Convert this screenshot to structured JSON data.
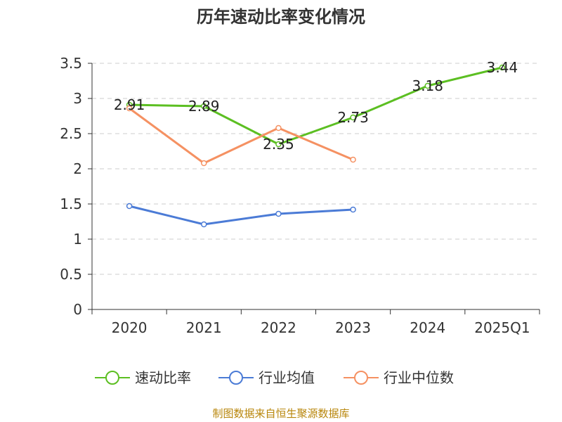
{
  "chart_data": {
    "type": "line",
    "title": "历年速动比率变化情况",
    "categories": [
      "2020",
      "2021",
      "2022",
      "2023",
      "2024",
      "2025Q1"
    ],
    "ylim": [
      0,
      3.5
    ],
    "yticks": [
      "0",
      "0.5",
      "1",
      "1.5",
      "2",
      "2.5",
      "3",
      "3.5"
    ],
    "grid": true,
    "legend_position": "bottom",
    "series": [
      {
        "name": "速动比率",
        "color": "#5cbf22",
        "values": [
          2.91,
          2.89,
          2.35,
          2.73,
          3.18,
          3.44
        ],
        "labels": [
          "2.91",
          "2.89",
          "2.35",
          "2.73",
          "3.18",
          "3.44"
        ]
      },
      {
        "name": "行业均值",
        "color": "#4b7bd6",
        "values": [
          1.47,
          1.21,
          1.36,
          1.42,
          null,
          null
        ]
      },
      {
        "name": "行业中位数",
        "color": "#f59162",
        "values": [
          2.86,
          2.08,
          2.58,
          2.13,
          null,
          null
        ]
      }
    ]
  },
  "source_text": "制图数据来自恒生聚源数据库"
}
